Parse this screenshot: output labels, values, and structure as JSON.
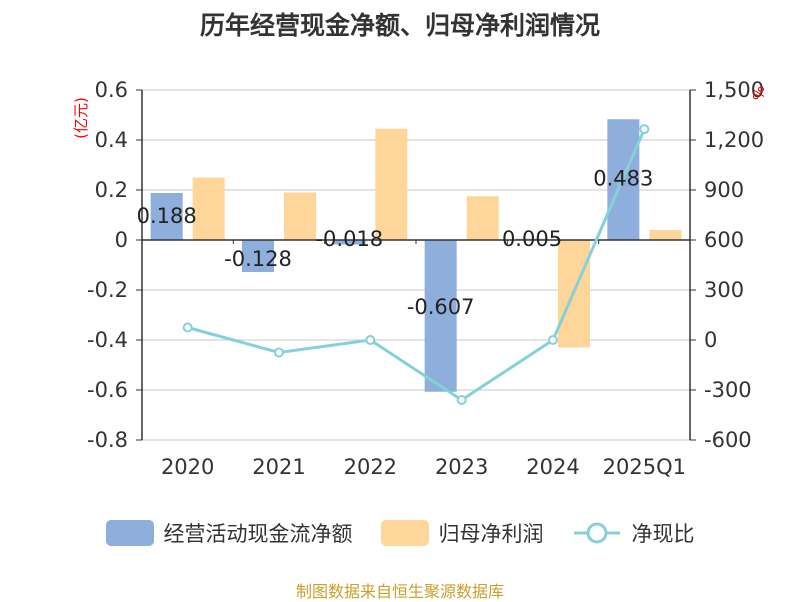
{
  "title": "历年经营现金净额、归母净利润情况",
  "source": "制图数据来自恒生聚源数据库",
  "chart_data": {
    "type": "bar",
    "categories": [
      "2020",
      "2021",
      "2022",
      "2023",
      "2024",
      "2025Q1"
    ],
    "left_axis": {
      "label": "(亿元)",
      "ylim": [
        -0.8,
        0.6
      ],
      "ticks": [
        "0.6",
        "0.4",
        "0.2",
        "0",
        "-0.2",
        "-0.4",
        "-0.6",
        "-0.8"
      ]
    },
    "right_axis": {
      "label": "%",
      "ylim": [
        -600,
        1500
      ],
      "ticks": [
        "1,500",
        "1,200",
        "900",
        "600",
        "300",
        "0",
        "-300",
        "-600"
      ]
    },
    "series": [
      {
        "name": "经营活动现金流净额",
        "type": "bar",
        "axis": "left",
        "color": "#8eaedc",
        "values": [
          0.188,
          -0.128,
          -0.018,
          -0.607,
          0.005,
          0.483
        ],
        "labels": [
          "0.188",
          "-0.128",
          "-0.018",
          "-0.607",
          "0.005",
          "0.483"
        ]
      },
      {
        "name": "归母净利润",
        "type": "bar",
        "axis": "left",
        "color": "#fed699",
        "values": [
          0.25,
          0.19,
          0.445,
          0.175,
          -0.43,
          0.04
        ]
      },
      {
        "name": "净现比",
        "type": "line",
        "axis": "right",
        "color": "#86d0d8",
        "values": [
          75,
          -75,
          0,
          -360,
          0,
          1265
        ]
      }
    ],
    "grid": true,
    "legend_position": "bottom"
  }
}
